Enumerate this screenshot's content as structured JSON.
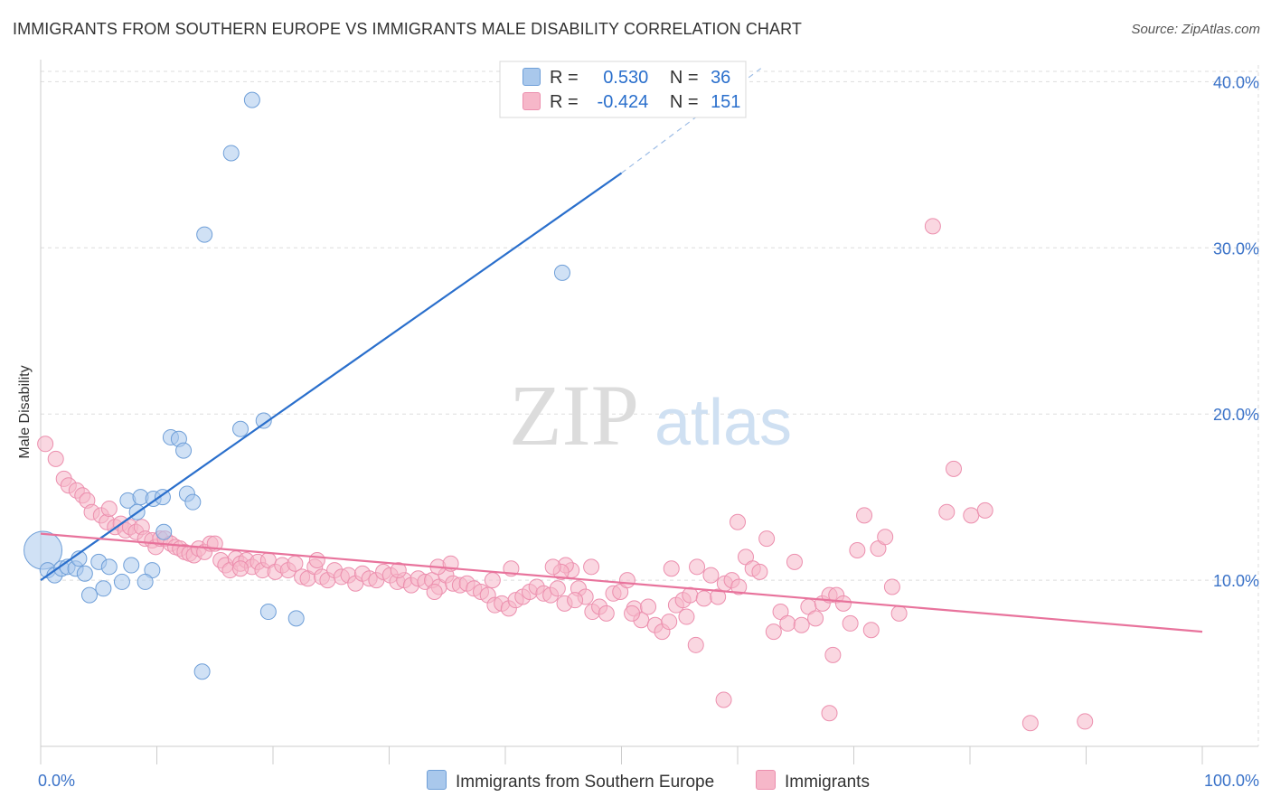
{
  "title": "IMMIGRANTS FROM SOUTHERN EUROPE VS IMMIGRANTS MALE DISABILITY CORRELATION CHART",
  "source": "Source: ZipAtlas.com",
  "watermark": {
    "zip": "ZIP",
    "atlas": "atlas"
  },
  "legend_top": [
    {
      "r_label": "R =",
      "r_value": "0.530",
      "n_label": "N =",
      "n_value": "36"
    },
    {
      "r_label": "R =",
      "r_value": "-0.424",
      "n_label": "N =",
      "n_value": "151"
    }
  ],
  "colors": {
    "blue_fill": "#a9c8ec",
    "blue_stroke": "#6f9fd8",
    "blue_line": "#2a6fcc",
    "pink_fill": "#f6b7c9",
    "pink_stroke": "#ec8fae",
    "pink_line": "#e8739c",
    "axis_text": "#3a72c8",
    "grid": "#dddddd"
  },
  "chart_data": {
    "type": "scatter",
    "title": "IMMIGRANTS FROM SOUTHERN EUROPE VS IMMIGRANTS MALE DISABILITY CORRELATION CHART",
    "xlabel": "",
    "ylabel": "Male Disability",
    "xlim": [
      0,
      100
    ],
    "ylim": [
      0,
      41
    ],
    "x_tick_labels": [
      {
        "value": 0,
        "label": "0.0%"
      },
      {
        "value": 100,
        "label": "100.0%"
      }
    ],
    "y_ticks": [
      {
        "value": 10,
        "label": "10.0%"
      },
      {
        "value": 20,
        "label": "20.0%"
      },
      {
        "value": 30,
        "label": "30.0%"
      },
      {
        "value": 40,
        "label": "40.0%"
      }
    ],
    "grid": true,
    "series": [
      {
        "name": "Immigrants from Southern Europe",
        "color": "#a9c8ec",
        "r": 0.53,
        "n": 36,
        "trend": {
          "x": [
            0,
            50
          ],
          "y": [
            10.0,
            34.5
          ],
          "dashed_to": [
            62,
            40.8
          ]
        },
        "points": [
          [
            0.2,
            11.8,
            3
          ],
          [
            0.6,
            10.6,
            1
          ],
          [
            1.2,
            10.3,
            1
          ],
          [
            1.8,
            10.7,
            1
          ],
          [
            2.3,
            10.8,
            1
          ],
          [
            3.0,
            10.7,
            1
          ],
          [
            3.3,
            11.3,
            1
          ],
          [
            3.8,
            10.4,
            1
          ],
          [
            4.2,
            9.1,
            1
          ],
          [
            5.0,
            11.1,
            1
          ],
          [
            5.9,
            10.8,
            1
          ],
          [
            7.0,
            9.9,
            1
          ],
          [
            5.4,
            9.5,
            1
          ],
          [
            7.5,
            14.8,
            1
          ],
          [
            7.8,
            10.9,
            1
          ],
          [
            8.3,
            14.1,
            1
          ],
          [
            8.6,
            15.0,
            1
          ],
          [
            9.6,
            10.6,
            1
          ],
          [
            9.7,
            14.9,
            1
          ],
          [
            10.5,
            15.0,
            1
          ],
          [
            10.6,
            12.9,
            1
          ],
          [
            11.2,
            18.6,
            1
          ],
          [
            11.9,
            18.5,
            1
          ],
          [
            12.3,
            17.8,
            1
          ],
          [
            12.6,
            15.2,
            1
          ],
          [
            13.1,
            14.7,
            1
          ],
          [
            13.9,
            4.5,
            1
          ],
          [
            14.1,
            30.8,
            1
          ],
          [
            16.4,
            35.7,
            1
          ],
          [
            17.2,
            19.1,
            1
          ],
          [
            18.2,
            38.9,
            1
          ],
          [
            19.2,
            19.6,
            1
          ],
          [
            19.6,
            8.1,
            1
          ],
          [
            22.0,
            7.7,
            1
          ],
          [
            44.9,
            28.5,
            1
          ],
          [
            9.0,
            9.9,
            1
          ]
        ]
      },
      {
        "name": "Immigrants",
        "color": "#f6b7c9",
        "r": -0.424,
        "n": 151,
        "trend": {
          "x": [
            0,
            100
          ],
          "y": [
            12.8,
            6.9
          ]
        },
        "points": [
          [
            0.4,
            18.2
          ],
          [
            1.3,
            17.3
          ],
          [
            2.0,
            16.1
          ],
          [
            2.4,
            15.7
          ],
          [
            3.1,
            15.4
          ],
          [
            3.6,
            15.1
          ],
          [
            4.0,
            14.8
          ],
          [
            4.4,
            14.1
          ],
          [
            5.2,
            13.9
          ],
          [
            5.7,
            13.5
          ],
          [
            5.9,
            14.3
          ],
          [
            6.4,
            13.2
          ],
          [
            6.9,
            13.4
          ],
          [
            7.3,
            13.0
          ],
          [
            7.7,
            13.2
          ],
          [
            8.2,
            12.9
          ],
          [
            8.7,
            13.2
          ],
          [
            9.0,
            12.5
          ],
          [
            9.6,
            12.4
          ],
          [
            9.9,
            12.0
          ],
          [
            10.3,
            12.5
          ],
          [
            10.7,
            12.5
          ],
          [
            11.2,
            12.2
          ],
          [
            11.6,
            12.0
          ],
          [
            12.0,
            11.9
          ],
          [
            12.4,
            11.7
          ],
          [
            12.8,
            11.6
          ],
          [
            13.2,
            11.5
          ],
          [
            13.6,
            11.9
          ],
          [
            14.1,
            11.7
          ],
          [
            14.6,
            12.2
          ],
          [
            15.0,
            12.2
          ],
          [
            15.5,
            11.2
          ],
          [
            15.9,
            10.9
          ],
          [
            16.3,
            10.6
          ],
          [
            16.8,
            11.3
          ],
          [
            17.2,
            11.0
          ],
          [
            17.7,
            11.2
          ],
          [
            18.2,
            10.8
          ],
          [
            18.7,
            11.1
          ],
          [
            19.1,
            10.6
          ],
          [
            19.6,
            11.2
          ],
          [
            20.2,
            10.5
          ],
          [
            20.8,
            10.9
          ],
          [
            21.3,
            10.6
          ],
          [
            21.9,
            11.0
          ],
          [
            22.5,
            10.2
          ],
          [
            23.0,
            10.1
          ],
          [
            23.6,
            10.8
          ],
          [
            24.2,
            10.2
          ],
          [
            24.7,
            10.0
          ],
          [
            25.3,
            10.6
          ],
          [
            25.9,
            10.2
          ],
          [
            26.5,
            10.3
          ],
          [
            27.1,
            9.8
          ],
          [
            27.7,
            10.4
          ],
          [
            28.3,
            10.1
          ],
          [
            28.9,
            10.0
          ],
          [
            29.5,
            10.5
          ],
          [
            30.1,
            10.3
          ],
          [
            30.7,
            9.9
          ],
          [
            31.3,
            10.0
          ],
          [
            31.9,
            9.7
          ],
          [
            32.5,
            10.1
          ],
          [
            33.1,
            9.9
          ],
          [
            33.7,
            10.0
          ],
          [
            34.3,
            9.6
          ],
          [
            34.9,
            10.3
          ],
          [
            35.5,
            9.8
          ],
          [
            36.1,
            9.7
          ],
          [
            36.7,
            9.8
          ],
          [
            37.3,
            9.5
          ],
          [
            37.9,
            9.3
          ],
          [
            38.5,
            9.1
          ],
          [
            39.1,
            8.5
          ],
          [
            39.7,
            8.6
          ],
          [
            40.3,
            8.3
          ],
          [
            40.9,
            8.8
          ],
          [
            41.5,
            9.0
          ],
          [
            42.1,
            9.3
          ],
          [
            42.7,
            9.6
          ],
          [
            43.3,
            9.2
          ],
          [
            43.9,
            9.1
          ],
          [
            44.5,
            9.5
          ],
          [
            45.1,
            8.6
          ],
          [
            45.7,
            10.6
          ],
          [
            46.3,
            9.5
          ],
          [
            46.9,
            9.0
          ],
          [
            47.5,
            8.1
          ],
          [
            48.1,
            8.4
          ],
          [
            48.7,
            8.0
          ],
          [
            49.3,
            9.2
          ],
          [
            49.9,
            9.3
          ],
          [
            50.5,
            10.0
          ],
          [
            51.1,
            8.3
          ],
          [
            51.7,
            7.6
          ],
          [
            52.3,
            8.4
          ],
          [
            52.9,
            7.3
          ],
          [
            53.5,
            6.9
          ],
          [
            54.1,
            7.5
          ],
          [
            54.7,
            8.5
          ],
          [
            55.3,
            8.8
          ],
          [
            55.9,
            9.1
          ],
          [
            56.5,
            10.8
          ],
          [
            57.1,
            8.9
          ],
          [
            57.7,
            10.3
          ],
          [
            58.3,
            9.0
          ],
          [
            58.9,
            9.8
          ],
          [
            59.5,
            10.0
          ],
          [
            60.1,
            9.6
          ],
          [
            60.7,
            11.4
          ],
          [
            61.3,
            10.7
          ],
          [
            61.9,
            10.5
          ],
          [
            62.5,
            12.5
          ],
          [
            63.1,
            6.9
          ],
          [
            63.7,
            8.1
          ],
          [
            64.3,
            7.4
          ],
          [
            64.9,
            11.1
          ],
          [
            65.5,
            7.3
          ],
          [
            66.1,
            8.4
          ],
          [
            66.7,
            7.7
          ],
          [
            67.3,
            8.6
          ],
          [
            67.9,
            9.1
          ],
          [
            68.5,
            9.1
          ],
          [
            69.1,
            8.6
          ],
          [
            69.7,
            7.4
          ],
          [
            70.3,
            11.8
          ],
          [
            70.9,
            13.9
          ],
          [
            71.5,
            7.0
          ],
          [
            72.1,
            11.9
          ],
          [
            72.7,
            12.6
          ],
          [
            73.3,
            9.6
          ],
          [
            73.9,
            8.0
          ],
          [
            78.6,
            16.7
          ],
          [
            80.1,
            13.9
          ],
          [
            81.3,
            14.2
          ],
          [
            78.0,
            14.1
          ],
          [
            60.0,
            13.5
          ],
          [
            17.2,
            10.7
          ],
          [
            34.2,
            10.8
          ],
          [
            55.6,
            7.8
          ],
          [
            56.4,
            6.1
          ],
          [
            54.3,
            10.7
          ],
          [
            45.2,
            10.9
          ],
          [
            40.5,
            10.7
          ],
          [
            44.8,
            10.5
          ],
          [
            35.3,
            11.0
          ],
          [
            46.0,
            8.8
          ],
          [
            33.9,
            9.3
          ],
          [
            68.2,
            5.5
          ],
          [
            67.9,
            2.0
          ],
          [
            89.9,
            1.5
          ],
          [
            76.8,
            31.3
          ],
          [
            58.8,
            2.8
          ],
          [
            85.2,
            1.4
          ],
          [
            47.4,
            10.8
          ],
          [
            44.1,
            10.8
          ],
          [
            30.8,
            10.6
          ],
          [
            23.8,
            11.2
          ],
          [
            38.9,
            10.0
          ],
          [
            50.9,
            8.0
          ]
        ]
      }
    ]
  },
  "bottom_legend": [
    {
      "label": "Immigrants from Southern Europe"
    },
    {
      "label": "Immigrants"
    }
  ]
}
